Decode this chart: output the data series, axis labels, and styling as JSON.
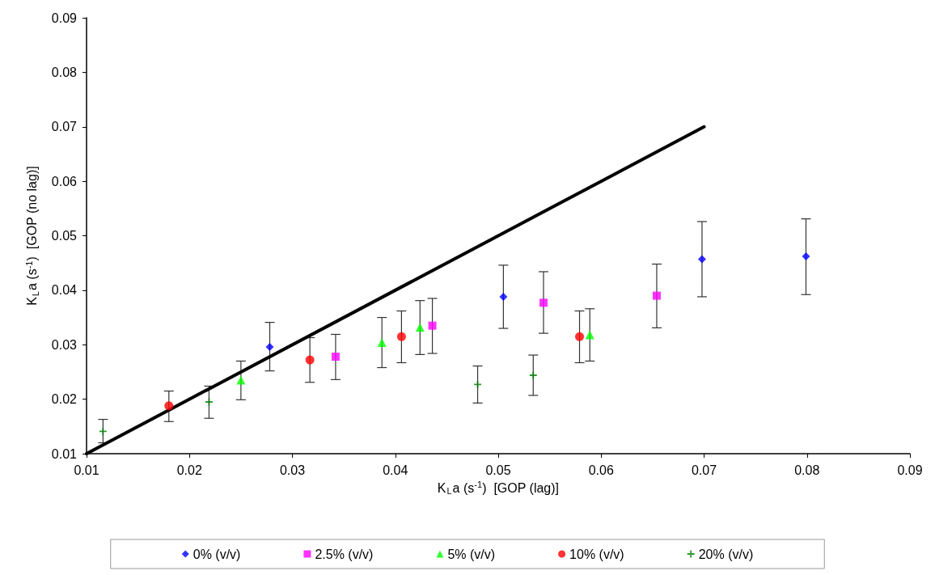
{
  "chart_data": {
    "type": "scatter",
    "xlabel": "K$_{L}$a (s$^{-1}$)  [GOP (lag)]",
    "ylabel": "K$_{L}$a (s$^{-1}$)  [GOP (no lag)]",
    "xlim": [
      0.01,
      0.09
    ],
    "xticks": [
      0.01,
      0.02,
      0.03,
      0.04,
      0.05,
      0.06,
      0.07,
      0.08,
      0.09
    ],
    "ylim": [
      0.01,
      0.09
    ],
    "yticks": [
      0.01,
      0.02,
      0.03,
      0.04,
      0.05,
      0.06,
      0.07,
      0.08,
      0.09
    ],
    "grid": false,
    "legend": "bottom",
    "series": [
      {
        "name": "0% (v/v)",
        "color": "#0000ff",
        "marker": "diamond",
        "x": [
          0.0278,
          0.0505,
          0.0698,
          0.0799
        ],
        "values": [
          0.0296,
          0.0388,
          0.0457,
          0.0462
        ],
        "errors": [
          [
            0.0252,
            0.0341
          ],
          [
            0.033,
            0.0446
          ],
          [
            0.0388,
            0.0526
          ],
          [
            0.0392,
            0.0531
          ]
        ]
      },
      {
        "name": "2.5% (v/v)",
        "color": "#ff00ff",
        "marker": "square",
        "x": [
          0.0342,
          0.0436,
          0.0544,
          0.0654
        ],
        "values": [
          0.0278,
          0.0335,
          0.0377,
          0.039
        ],
        "errors": [
          [
            0.0236,
            0.0319
          ],
          [
            0.0284,
            0.0385
          ],
          [
            0.0321,
            0.0434
          ],
          [
            0.0331,
            0.0448
          ]
        ]
      },
      {
        "name": "5% (v/v)",
        "color": "#00ff00",
        "marker": "triangle",
        "x": [
          0.025,
          0.0387,
          0.0424,
          0.0589
        ],
        "values": [
          0.0235,
          0.0304,
          0.0332,
          0.0318
        ],
        "errors": [
          [
            0.0199,
            0.027
          ],
          [
            0.0258,
            0.035
          ],
          [
            0.0282,
            0.0381
          ],
          [
            0.027,
            0.0366
          ]
        ]
      },
      {
        "name": "10% (v/v)",
        "color": "#ff0000",
        "marker": "circle",
        "x": [
          0.018,
          0.0317,
          0.0406,
          0.0579
        ],
        "values": [
          0.0188,
          0.0272,
          0.0315,
          0.0315
        ],
        "errors": [
          [
            0.0159,
            0.0215
          ],
          [
            0.0231,
            0.0313
          ],
          [
            0.0267,
            0.0362
          ],
          [
            0.0267,
            0.0362
          ]
        ]
      },
      {
        "name": "20% (v/v)",
        "color": "#008000",
        "marker": "cross",
        "x": [
          0.0116,
          0.0219,
          0.048,
          0.0534
        ],
        "values": [
          0.0141,
          0.0195,
          0.0227,
          0.0244
        ],
        "errors": [
          [
            0.012,
            0.0163
          ],
          [
            0.0165,
            0.0224
          ],
          [
            0.0193,
            0.0261
          ],
          [
            0.0207,
            0.0281
          ]
        ]
      },
      {
        "type": "line",
        "color": "#000000",
        "marker": "none",
        "line_style": "solid",
        "x": [
          0.01,
          0.07
        ],
        "values": [
          0.01,
          0.07
        ]
      }
    ]
  }
}
